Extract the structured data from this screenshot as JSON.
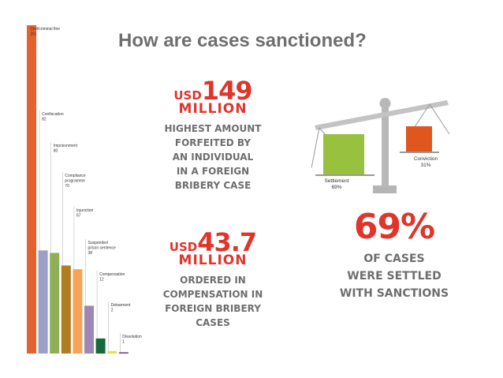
{
  "title": "How are cases sanctioned?",
  "chart_data": {
    "type": "bar",
    "categories": [
      "Civil/criminal fine",
      "Confiscation",
      "Imprisonment",
      "Compliance programme",
      "Injunction",
      "Suspended prison sentence",
      "Compensation",
      "Debarment",
      "Dissolution"
    ],
    "values": [
      261,
      82,
      80,
      70,
      67,
      38,
      12,
      2,
      1
    ],
    "colors": [
      "#e3622e",
      "#9aa0c8",
      "#8faf56",
      "#b07c24",
      "#f3a457",
      "#9c88b3",
      "#16693a",
      "#e8e04a",
      "#6b3f93"
    ],
    "annotations": [
      "Civil/criminal fine 261",
      "Confiscation 82",
      "Imprisonment 80",
      "Compliance programme 70",
      "Injunction 67",
      "Suspended prison sentence 38",
      "Compensation 12",
      "Debarment 2",
      "Dissolution 1"
    ]
  },
  "stat1": {
    "unit": "USD",
    "amount": "149",
    "scale": "MILLION",
    "lines": [
      "HIGHEST AMOUNT",
      "FORFEITED BY",
      "AN INDIVIDUAL",
      "IN A FOREIGN",
      "BRIBERY CASE"
    ]
  },
  "stat2": {
    "unit": "USD",
    "amount": "43.7",
    "scale": "MILLION",
    "lines": [
      "ORDERED IN",
      "COMPENSATION IN",
      "FOREIGN BRIBERY",
      "CASES"
    ]
  },
  "scale_figure": {
    "settlement_label": "Settlement",
    "settlement_pct": "69%",
    "settlement_color": "#97c13f",
    "conviction_label": "Conviction",
    "conviction_pct": "31%",
    "conviction_color": "#e0561f"
  },
  "headline": {
    "pct": "69%",
    "lines": [
      "OF CASES",
      "WERE SETTLED",
      "WITH SANCTIONS"
    ]
  }
}
